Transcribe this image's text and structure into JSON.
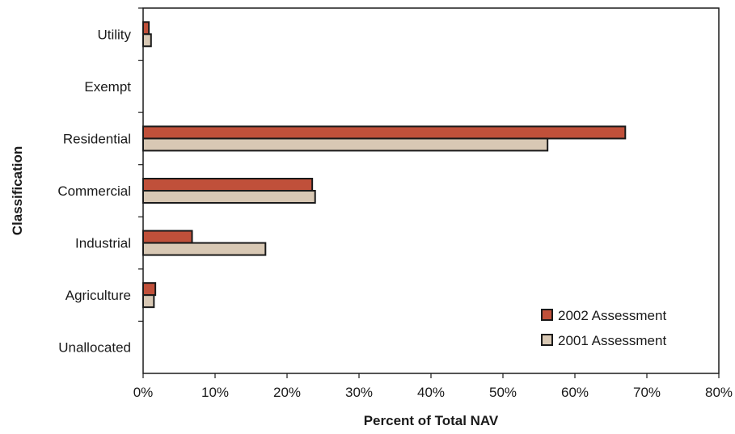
{
  "chart_data": {
    "type": "bar",
    "orientation": "horizontal",
    "categories": [
      "Utility",
      "Exempt",
      "Residential",
      "Commercial",
      "Industrial",
      "Agriculture",
      "Unallocated"
    ],
    "series": [
      {
        "name": "2002 Assessment",
        "values": [
          0.8,
          0.0,
          67.0,
          23.5,
          6.8,
          1.7,
          0.0
        ]
      },
      {
        "name": "2001 Assessment",
        "values": [
          1.1,
          0.0,
          56.2,
          23.9,
          17.0,
          1.5,
          0.0
        ]
      }
    ],
    "xlabel": "Percent of Total NAV",
    "ylabel": "Classification",
    "xlim": [
      0,
      80
    ],
    "xticks": [
      "0%",
      "10%",
      "20%",
      "30%",
      "40%",
      "50%",
      "60%",
      "70%",
      "80%"
    ],
    "grid": false,
    "legend_position": "bottom-right",
    "colors": {
      "2002 Assessment": "#c0503a",
      "2001 Assessment": "#d8c8b4",
      "outline": "#1a1a1a"
    }
  }
}
